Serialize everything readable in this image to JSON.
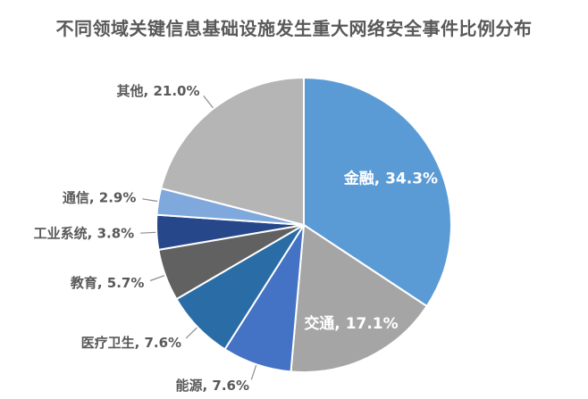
{
  "page": {
    "background_color": "#FFFFFF"
  },
  "chart_data": {
    "type": "pie",
    "title": "不同领域关键信息基础设施发生重大网络安全事件比例分布",
    "title_color": "#595959",
    "label_format": "{label}, {value}%",
    "outside_label_color": "#595959",
    "inside_label_color": "#FFFFFF",
    "leader_line_color": "#8C8C8C",
    "slice_border_color": "#FFFFFF",
    "start_angle_deg": 0,
    "direction": "clockwise",
    "legend": "none",
    "slices": [
      {
        "label": "金融",
        "value": 34.3,
        "color": "#5B9BD5",
        "label_placement": "inside"
      },
      {
        "label": "交通",
        "value": 17.1,
        "color": "#A5A5A5",
        "label_placement": "inside"
      },
      {
        "label": "能源",
        "value": 7.6,
        "color": "#4472C4",
        "label_placement": "outside"
      },
      {
        "label": "医疗卫生",
        "value": 7.6,
        "color": "#2A6CA5",
        "label_placement": "outside"
      },
      {
        "label": "教育",
        "value": 5.7,
        "color": "#616161",
        "label_placement": "outside"
      },
      {
        "label": "工业系统",
        "value": 3.8,
        "color": "#264789",
        "label_placement": "outside"
      },
      {
        "label": "通信",
        "value": 2.9,
        "color": "#7FA8DC",
        "label_placement": "outside"
      },
      {
        "label": "其他",
        "value": 21.0,
        "color": "#B5B5B5",
        "label_placement": "outside"
      }
    ]
  }
}
